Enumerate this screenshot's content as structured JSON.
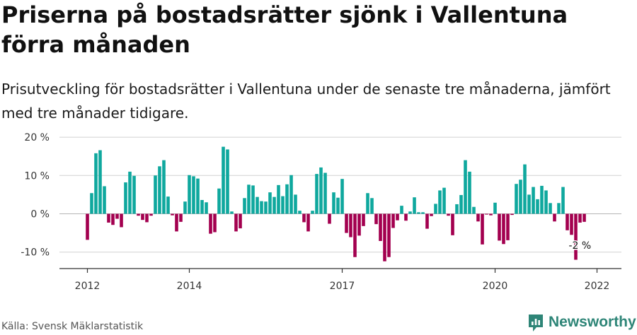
{
  "title": "Priserna på bostadsrätter sjönk i Vallentuna förra månaden",
  "subtitle": "Prisutveckling för bostadsrätter i Vallentuna under de senaste tre månaderna, jämfört med tre månader tidigare.",
  "source": "Källa: Svensk Mäklarstatistik",
  "brand": "Newsworthy",
  "colors": {
    "positive": "#0fa89e",
    "negative": "#a3004f",
    "grid": "#d0d0d0",
    "axis": "#333333",
    "brand": "#2e8577"
  },
  "chart_data": {
    "type": "bar",
    "title": "Priserna på bostadsrätter sjönk i Vallentuna förra månaden",
    "xlabel": "",
    "ylabel": "",
    "unit": "%",
    "ylim": [
      -14,
      20
    ],
    "yticks": [
      20,
      10,
      0,
      -10
    ],
    "ytick_labels": [
      "20 %",
      "10 %",
      "0 %",
      "-10 %"
    ],
    "x_start": "2012-01",
    "xticks": [
      {
        "index": 0,
        "label": "2012"
      },
      {
        "index": 24,
        "label": "2014"
      },
      {
        "index": 60,
        "label": "2017"
      },
      {
        "index": 96,
        "label": "2020"
      },
      {
        "index": 120,
        "label": "2022"
      }
    ],
    "values": [
      -6.8,
      5.4,
      15.8,
      16.6,
      7.2,
      -2.3,
      -2.9,
      -1.3,
      -3.5,
      8.2,
      11.0,
      9.9,
      -0.5,
      -1.6,
      -2.2,
      -0.5,
      10.0,
      12.4,
      14.0,
      4.5,
      -0.4,
      -4.6,
      -2.1,
      3.2,
      10.1,
      9.8,
      9.2,
      3.6,
      3.0,
      -5.2,
      -4.8,
      6.6,
      17.5,
      16.8,
      0.6,
      -4.6,
      -3.8,
      4.1,
      7.6,
      7.4,
      4.4,
      3.3,
      3.2,
      5.6,
      4.4,
      7.5,
      4.6,
      7.7,
      10.1,
      5.0,
      0.8,
      -2.2,
      -4.6,
      0.8,
      10.4,
      12.1,
      10.7,
      -2.6,
      5.6,
      4.2,
      9.1,
      -5.0,
      -6.1,
      -11.3,
      -5.7,
      -3.2,
      5.4,
      4.1,
      -2.7,
      -7.1,
      -12.4,
      -11.3,
      -3.7,
      -1.7,
      2.1,
      -1.8,
      0.6,
      4.3,
      0.4,
      0.4,
      -3.9,
      -0.6,
      2.6,
      6.1,
      6.8,
      -0.5,
      -5.6,
      2.5,
      4.9,
      14.0,
      11.0,
      1.8,
      -2.0,
      -8.0,
      -0.2,
      -0.4,
      2.9,
      -7.0,
      -7.9,
      -6.9,
      -0.3,
      7.8,
      8.9,
      12.9,
      5.0,
      7.0,
      3.8,
      7.3,
      6.1,
      2.8,
      -2.0,
      2.8,
      7.0,
      -4.3,
      -5.5,
      -12.0,
      -2.3,
      -2.1
    ],
    "last_label": "-2 %"
  }
}
